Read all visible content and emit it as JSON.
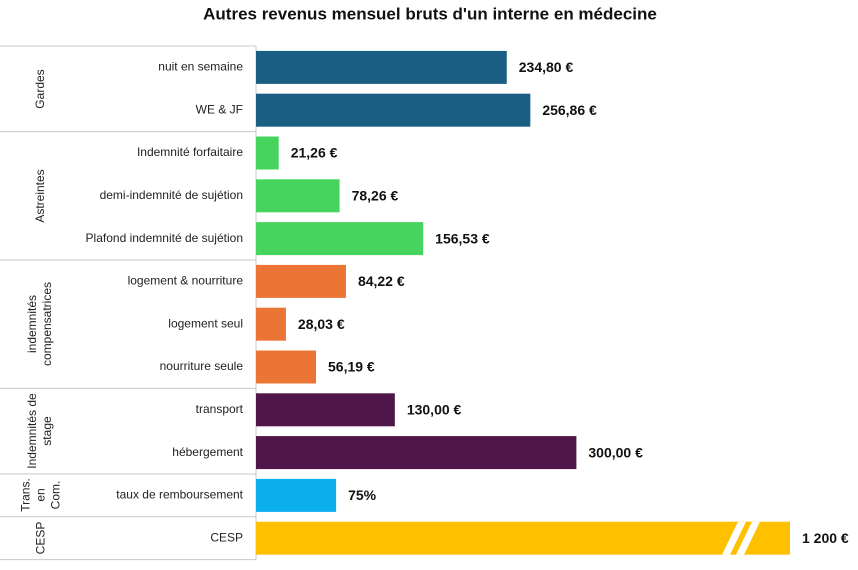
{
  "chart_data": {
    "type": "bar",
    "orientation": "horizontal",
    "title": "Autres revenus mensuel bruts d'un interne en médecine",
    "xlim": [
      0,
      500
    ],
    "groups": [
      {
        "name": "Gardes",
        "color": "#1b5e84",
        "categories": [
          "nuit en semaine",
          "WE & JF"
        ],
        "values": [
          234.8,
          256.86
        ],
        "value_labels": [
          "234,80 €",
          "256,86 €"
        ]
      },
      {
        "name": "Astreintes",
        "color": "#47d45e",
        "categories": [
          "Indemnité forfaitaire",
          "demi-indemnité de sujétion",
          "Plafond indemnité de sujétion"
        ],
        "values": [
          21.26,
          78.26,
          156.53
        ],
        "value_labels": [
          "21,26 €",
          "78,26 €",
          "156,53 €"
        ]
      },
      {
        "name": "indemnités compensatrices",
        "color": "#ea7535",
        "categories": [
          "logement & nourriture",
          "logement seul",
          "nourriture seule"
        ],
        "values": [
          84.22,
          28.03,
          56.19
        ],
        "value_labels": [
          "84,22 €",
          "28,03 €",
          "56,19 €"
        ]
      },
      {
        "name": "Indemnités de stage",
        "color": "#4f1749",
        "categories": [
          "transport",
          "hébergement"
        ],
        "values": [
          130.0,
          300.0
        ],
        "value_labels": [
          "130,00 €",
          "300,00 €"
        ]
      },
      {
        "name": "Trans. en Com.",
        "color": "#0caeec",
        "categories": [
          "taux de remboursement"
        ],
        "values": [
          75
        ],
        "value_labels": [
          "75%"
        ]
      },
      {
        "name": "CESP",
        "color": "#ffc000",
        "categories": [
          "CESP"
        ],
        "values": [
          1200
        ],
        "value_labels": [
          "1 200 €"
        ]
      }
    ]
  }
}
